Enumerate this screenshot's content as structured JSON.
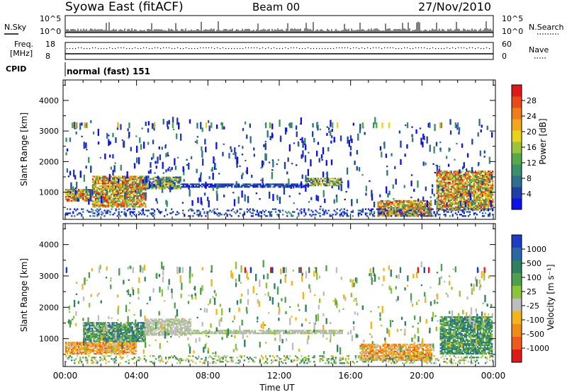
{
  "header": {
    "station": "Syowa East (fitACF)",
    "beam": "Beam 00",
    "date": "27/Nov/2010"
  },
  "status_panels": {
    "nsky_label": "N.Sky",
    "nsky_ticks": [
      "10^5",
      "10^0"
    ],
    "nsearch_label": "N.Search",
    "nsearch_ticks": [
      "10^5",
      "10^0"
    ],
    "freq_label_1": "Freq.",
    "freq_label_2": "[MHz]",
    "freq_ticks": [
      "18",
      "8"
    ],
    "nave_label": "Nave",
    "nave_ticks": [
      "60",
      "0"
    ],
    "cpid_label": "CPID",
    "cpid_value": "normal (fast) 151"
  },
  "chart_data": [
    {
      "type": "heatmap",
      "panel": "power",
      "ylabel": "Slant Range [km]",
      "xlabel": "",
      "ylim": [
        180,
        4600
      ],
      "yticks": [
        "1000",
        "2000",
        "3000",
        "4000"
      ],
      "colorbar_label": "Power [dB]",
      "colorbar_ticks": [
        "4",
        "8",
        "12",
        "16",
        "20",
        "24",
        "28"
      ],
      "colors": [
        "#1010e8",
        "#1e3fa8",
        "#2e6f8e",
        "#3b8f6a",
        "#58a84a",
        "#9cc43b",
        "#e8d21a",
        "#f2a61a",
        "#ee7d1a",
        "#e84a1a",
        "#e01818"
      ],
      "echo_regions": [
        {
          "t": [
            0.0,
            1.5
          ],
          "range": [
            700,
            1100
          ],
          "level": "high"
        },
        {
          "t": [
            1.5,
            4.5
          ],
          "range": [
            500,
            1500
          ],
          "level": "high"
        },
        {
          "t": [
            4.5,
            6.5
          ],
          "range": [
            1100,
            1500
          ],
          "level": "medium"
        },
        {
          "t": [
            6.5,
            13.5
          ],
          "range": [
            1150,
            1250
          ],
          "level": "low"
        },
        {
          "t": [
            13.5,
            15.5
          ],
          "range": [
            1200,
            1450
          ],
          "level": "medium"
        },
        {
          "t": [
            17.5,
            20.5
          ],
          "range": [
            200,
            700
          ],
          "level": "high"
        },
        {
          "t": [
            20.8,
            24.0
          ],
          "range": [
            400,
            1700
          ],
          "level": "high"
        }
      ]
    },
    {
      "type": "heatmap",
      "panel": "velocity",
      "ylabel": "Slant Range [km]",
      "xlabel": "Time UT",
      "ylim": [
        180,
        4600
      ],
      "yticks": [
        "1000",
        "2000",
        "3000",
        "4000"
      ],
      "xticks": [
        "00:00",
        "04:00",
        "08:00",
        "12:00",
        "16:00",
        "20:00",
        "00:00"
      ],
      "colorbar_label": "Velocity [m s⁻¹]",
      "colorbar_ticks": [
        "1000",
        "500",
        "100",
        "25",
        "-25",
        "-100",
        "-500",
        "-1000"
      ],
      "colors": [
        "#1c3cc8",
        "#2a66a8",
        "#2f8060",
        "#4ea050",
        "#8cc43a",
        "#bdbdbd",
        "#f2b41a",
        "#f08a1a",
        "#ee5a1a",
        "#e01818"
      ],
      "echo_regions": [
        {
          "t": [
            0.0,
            4.0
          ],
          "range": [
            500,
            900
          ],
          "level": "negative"
        },
        {
          "t": [
            1.0,
            4.5
          ],
          "range": [
            900,
            1500
          ],
          "level": "positive"
        },
        {
          "t": [
            4.5,
            7.0
          ],
          "range": [
            1100,
            1600
          ],
          "level": "near-zero"
        },
        {
          "t": [
            7.0,
            15.5
          ],
          "range": [
            1150,
            1250
          ],
          "level": "near-zero"
        },
        {
          "t": [
            16.5,
            20.5
          ],
          "range": [
            300,
            800
          ],
          "level": "negative"
        },
        {
          "t": [
            21.0,
            24.0
          ],
          "range": [
            500,
            1700
          ],
          "level": "positive"
        }
      ]
    }
  ]
}
